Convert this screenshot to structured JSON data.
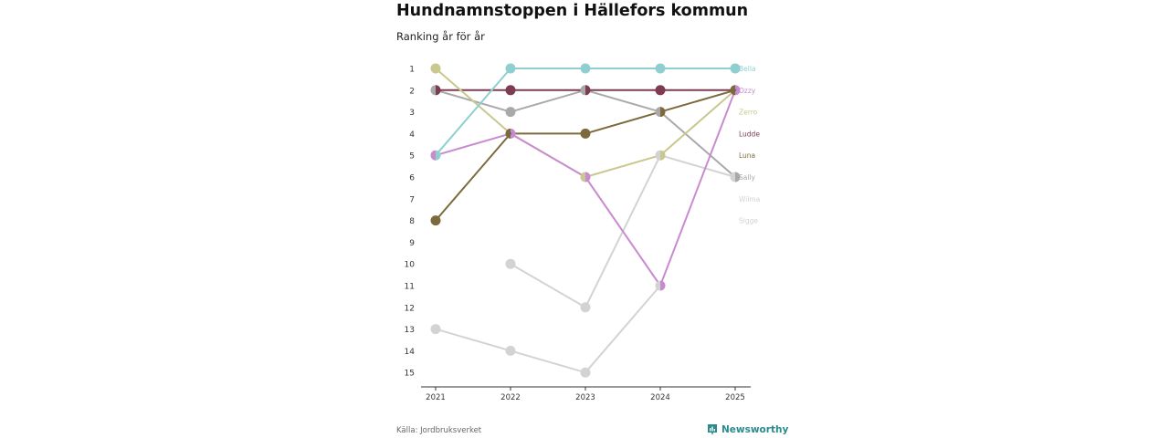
{
  "chart_data": {
    "type": "line",
    "title": "Hundnamnstoppen i Hällefors kommun",
    "subtitle": "Ranking år för år",
    "x": [
      "2021",
      "2022",
      "2023",
      "2024",
      "2025"
    ],
    "y_ticks": [
      "1",
      "2",
      "3",
      "4",
      "5",
      "6",
      "7",
      "8",
      "9",
      "10",
      "11",
      "12",
      "13",
      "14",
      "15"
    ],
    "ylim": [
      1,
      15
    ],
    "y_reversed": true,
    "series": [
      {
        "name": "Sigge",
        "color": "#d3d3d3",
        "ranks": [
          13,
          14,
          15,
          11,
          null
        ]
      },
      {
        "name": "Wilma",
        "color": "#d3d3d3",
        "ranks": [
          null,
          10,
          12,
          5,
          6
        ]
      },
      {
        "name": "Sally",
        "color": "#a9a9a9",
        "ranks": [
          2,
          3,
          2,
          3,
          6
        ]
      },
      {
        "name": "Luna",
        "color": "#7d6a3c",
        "ranks": [
          8,
          4,
          4,
          3,
          2
        ]
      },
      {
        "name": "Ludde",
        "color": "#7d3b54",
        "ranks": [
          2,
          2,
          2,
          2,
          2
        ]
      },
      {
        "name": "Zerro",
        "color": "#c9c88f",
        "ranks": [
          1,
          4,
          6,
          5,
          2
        ]
      },
      {
        "name": "Ozzy",
        "color": "#c98bcf",
        "ranks": [
          5,
          4,
          6,
          11,
          2
        ]
      },
      {
        "name": "Bella",
        "color": "#8fcfcf",
        "ranks": [
          5,
          1,
          1,
          1,
          1
        ]
      }
    ],
    "legend_order": [
      "Bella",
      "Ozzy",
      "Zerro",
      "Ludde",
      "Luna",
      "Sally",
      "Wilma",
      "Sigge"
    ],
    "legend_placement": "right-end labels",
    "grid": false
  },
  "footer": {
    "source": "Källa: Jordbruksverket",
    "brand": "Newsworthy"
  },
  "colors": {
    "brand": "#2a8a8c",
    "axis": "#333333"
  }
}
